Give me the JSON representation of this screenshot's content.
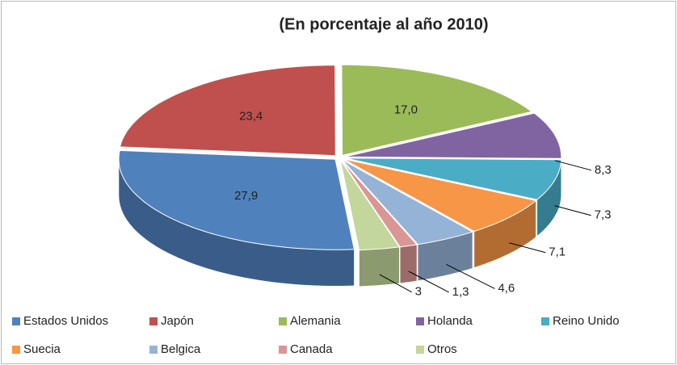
{
  "chart_data": {
    "type": "pie",
    "title": "(En porcentaje al año 2010)",
    "categories": [
      "Estados Unidos",
      "Japón",
      "Alemania",
      "Holanda",
      "Reino Unido",
      "Suecia",
      "Belgica",
      "Canada",
      "Otros"
    ],
    "values": [
      27.9,
      23.4,
      17.0,
      8.3,
      7.3,
      7.1,
      4.6,
      1.3,
      3
    ],
    "value_labels": [
      "27,9",
      "23,4",
      "17,0",
      "8,3",
      "7,3",
      "7,1",
      "4,6",
      "1,3",
      "3"
    ],
    "colors": [
      "#4f81bd",
      "#c0504d",
      "#9bbb59",
      "#8064a2",
      "#4bacc6",
      "#f79646",
      "#95b3d7",
      "#d99694",
      "#c3d69b"
    ],
    "legend": "bottom"
  }
}
